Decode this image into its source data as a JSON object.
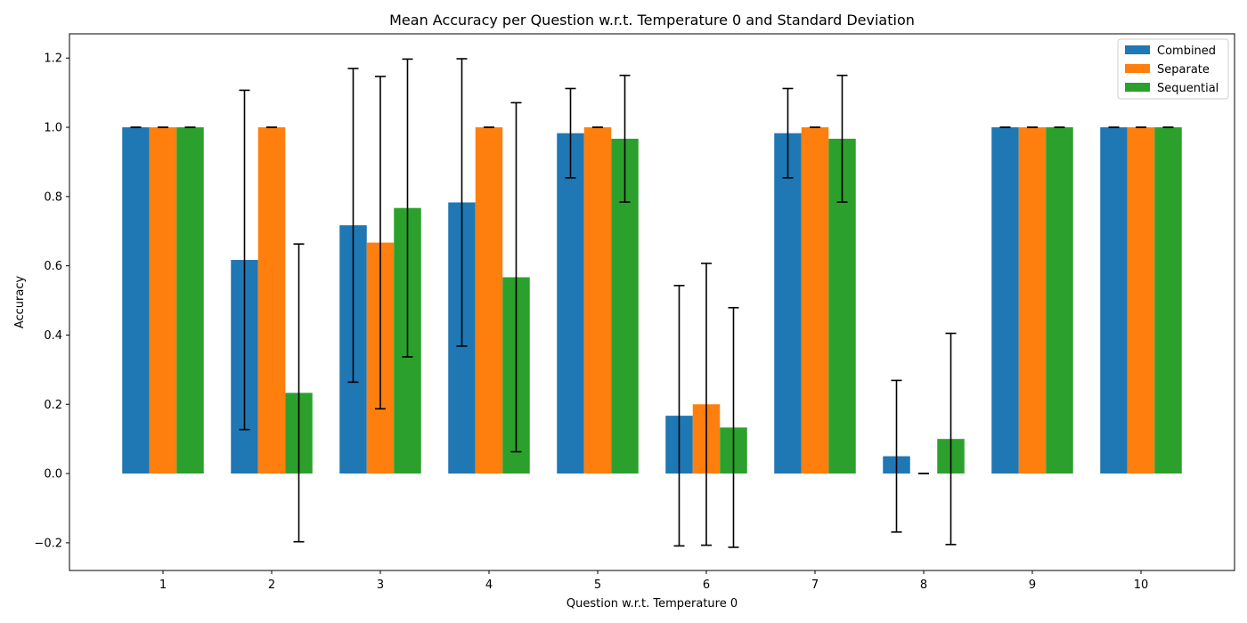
{
  "chart_data": {
    "type": "bar",
    "title": "Mean Accuracy per Question w.r.t. Temperature 0 and Standard Deviation",
    "xlabel": "Question w.r.t. Temperature 0",
    "ylabel": "Accuracy",
    "categories": [
      "1",
      "2",
      "3",
      "4",
      "5",
      "6",
      "7",
      "8",
      "9",
      "10"
    ],
    "ylim": [
      -0.28,
      1.27
    ],
    "yticks": [
      -0.2,
      0.0,
      0.2,
      0.4,
      0.6,
      0.8,
      1.0,
      1.2
    ],
    "ytick_labels": [
      "−0.2",
      "0.0",
      "0.2",
      "0.4",
      "0.6",
      "0.8",
      "1.0",
      "1.2"
    ],
    "grid": false,
    "legend_position": "top-right",
    "error_bars": true,
    "series": [
      {
        "name": "Combined",
        "color": "#1f77b4",
        "values": [
          1.0,
          0.617,
          0.717,
          0.783,
          0.983,
          0.167,
          0.983,
          0.05,
          1.0,
          1.0
        ],
        "std": [
          0.0,
          0.49,
          0.453,
          0.415,
          0.129,
          0.376,
          0.129,
          0.219,
          0.0,
          0.0
        ]
      },
      {
        "name": "Separate",
        "color": "#ff7f0e",
        "values": [
          1.0,
          1.0,
          0.667,
          1.0,
          1.0,
          0.2,
          1.0,
          0.0,
          1.0,
          1.0
        ],
        "std": [
          0.0,
          0.0,
          0.48,
          0.0,
          0.0,
          0.407,
          0.0,
          0.0,
          0.0,
          0.0
        ]
      },
      {
        "name": "Sequential",
        "color": "#2ca02c",
        "values": [
          1.0,
          0.233,
          0.767,
          0.567,
          0.967,
          0.133,
          0.967,
          0.1,
          1.0,
          1.0
        ],
        "std": [
          0.0,
          0.43,
          0.43,
          0.504,
          0.183,
          0.346,
          0.183,
          0.305,
          0.0,
          0.0
        ]
      }
    ]
  }
}
